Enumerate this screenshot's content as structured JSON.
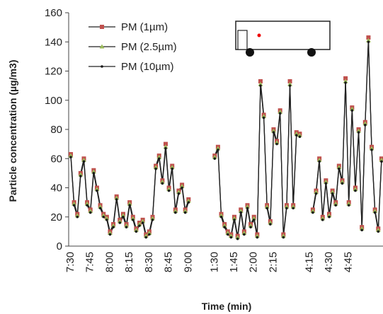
{
  "chart_data": {
    "type": "line",
    "xlabel": "Time (min)",
    "ylabel": "Particle concentration   (µg/m3)",
    "categories": [
      "7:30",
      null,
      null,
      null,
      null,
      null,
      "7:45",
      null,
      null,
      null,
      null,
      null,
      "8:00",
      null,
      null,
      null,
      null,
      null,
      "8:15",
      null,
      null,
      null,
      null,
      null,
      "8:30",
      null,
      null,
      null,
      null,
      null,
      "8:45",
      null,
      null,
      null,
      null,
      null,
      "9:00",
      null,
      null,
      null,
      null,
      null,
      null,
      null,
      "1:30",
      null,
      null,
      null,
      null,
      null,
      "1:45",
      null,
      null,
      null,
      null,
      null,
      "2:00",
      null,
      null,
      null,
      null,
      null,
      "2:15",
      null,
      null,
      null,
      null,
      null,
      null,
      null,
      null,
      null,
      null,
      "4:15",
      null,
      null,
      null,
      null,
      null,
      "4:30",
      null,
      null,
      null,
      null,
      null,
      "4:45",
      null,
      null,
      null,
      null,
      null,
      null,
      null,
      null,
      null,
      null
    ],
    "series": [
      {
        "name": "PM (1µm)",
        "color": "#c0504d",
        "marker": "square",
        "values": [
          63,
          30,
          22,
          50,
          60,
          30,
          25,
          52,
          40,
          28,
          22,
          20,
          10,
          15,
          34,
          18,
          22,
          15,
          30,
          20,
          12,
          16,
          18,
          8,
          10,
          20,
          55,
          62,
          45,
          70,
          40,
          55,
          25,
          38,
          42,
          25,
          32,
          null,
          null,
          null,
          null,
          null,
          null,
          null,
          62,
          68,
          22,
          15,
          10,
          8,
          20,
          7,
          25,
          10,
          28,
          15,
          20,
          8,
          113,
          90,
          28,
          17,
          80,
          72,
          93,
          8,
          28,
          113,
          28,
          78,
          77,
          null,
          null,
          null,
          25,
          38,
          60,
          20,
          45,
          22,
          38,
          30,
          55,
          45,
          115,
          30,
          95,
          40,
          80,
          13,
          85,
          143,
          68,
          25,
          12,
          60
        ]
      },
      {
        "name": "PM (2.5µm)",
        "color": "#9bbb59",
        "marker": "triangle",
        "values": [
          62,
          29,
          21,
          49,
          59,
          29,
          24,
          51,
          39,
          27,
          21,
          19,
          9,
          14,
          33,
          17,
          21,
          14,
          29,
          19,
          11,
          15,
          17,
          7,
          9,
          19,
          54,
          61,
          44,
          68,
          39,
          54,
          24,
          37,
          41,
          24,
          31,
          null,
          null,
          null,
          null,
          null,
          null,
          null,
          61,
          67,
          21,
          14,
          9,
          7,
          19,
          6,
          24,
          9,
          27,
          14,
          19,
          7,
          111,
          89,
          27,
          16,
          79,
          71,
          92,
          7,
          27,
          111,
          27,
          77,
          76,
          null,
          null,
          null,
          24,
          37,
          59,
          19,
          44,
          21,
          37,
          29,
          54,
          44,
          113,
          29,
          94,
          39,
          79,
          12,
          84,
          141,
          67,
          24,
          11,
          59
        ]
      },
      {
        "name": "PM (10µm)",
        "color": "#1a1a1a",
        "marker": "circle",
        "values": [
          61,
          28,
          20,
          48,
          58,
          28,
          23,
          50,
          38,
          26,
          20,
          18,
          8,
          13,
          32,
          16,
          20,
          13,
          28,
          18,
          10,
          14,
          16,
          6,
          8,
          18,
          53,
          60,
          43,
          67,
          38,
          53,
          23,
          36,
          40,
          23,
          30,
          null,
          null,
          null,
          null,
          null,
          null,
          null,
          60,
          66,
          20,
          13,
          8,
          6,
          18,
          5,
          23,
          8,
          26,
          13,
          18,
          6,
          110,
          88,
          26,
          15,
          78,
          70,
          91,
          6,
          26,
          110,
          26,
          76,
          75,
          null,
          null,
          null,
          23,
          36,
          58,
          18,
          43,
          20,
          36,
          28,
          53,
          43,
          112,
          28,
          93,
          38,
          78,
          11,
          83,
          140,
          66,
          23,
          10,
          58
        ]
      }
    ],
    "ylim": [
      0,
      160
    ],
    "yticks": [
      0,
      20,
      40,
      60,
      80,
      100,
      120,
      140,
      160
    ],
    "legend": "upper-left"
  }
}
